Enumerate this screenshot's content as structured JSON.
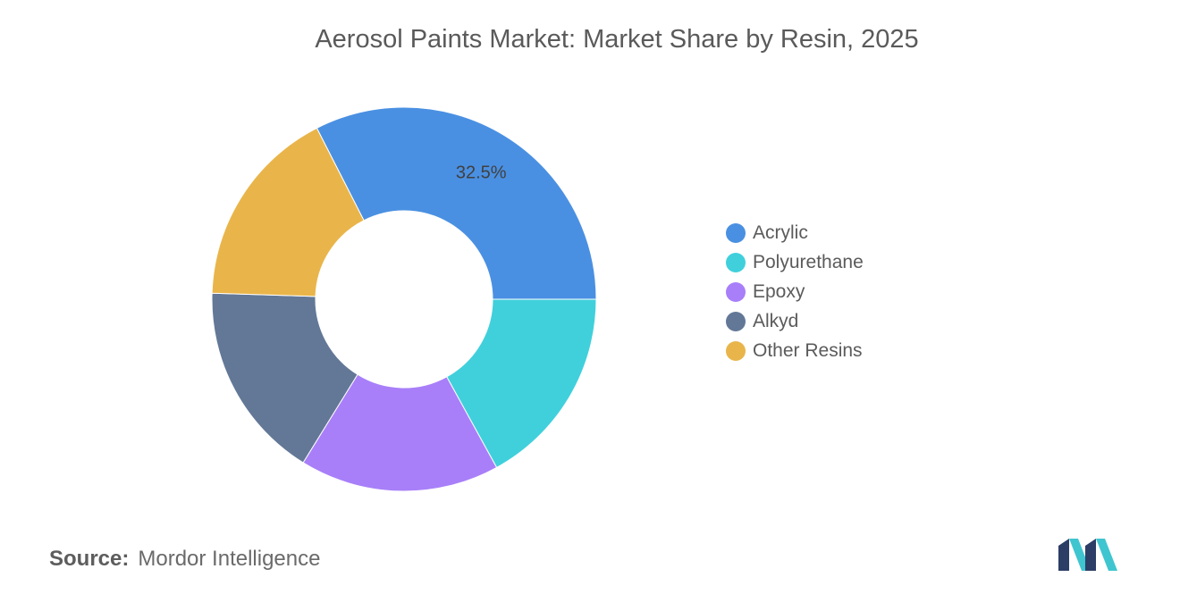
{
  "chart_data": {
    "type": "pie",
    "title": "Aerosol Paints Market: Market Share by Resin, 2025",
    "donut": true,
    "legend_position": "right",
    "slices": [
      {
        "label": "Acrylic",
        "value": 32.5,
        "color": "#4a90e2",
        "data_label": "32.5%"
      },
      {
        "label": "Polyurethane",
        "value": 17.0,
        "color": "#40d0dc",
        "data_label": ""
      },
      {
        "label": "Epoxy",
        "value": 16.8,
        "color": "#a87ff9",
        "data_label": ""
      },
      {
        "label": "Alkyd",
        "value": 16.7,
        "color": "#637897",
        "data_label": ""
      },
      {
        "label": "Other Resins",
        "value": 17.0,
        "color": "#e9b54a",
        "data_label": ""
      }
    ]
  },
  "source": {
    "label": "Source:",
    "text": "Mordor Intelligence"
  },
  "logo": {
    "icon": "mordor-intelligence-logo-icon",
    "colors": [
      "#2c3e66",
      "#3fc5cf"
    ]
  }
}
